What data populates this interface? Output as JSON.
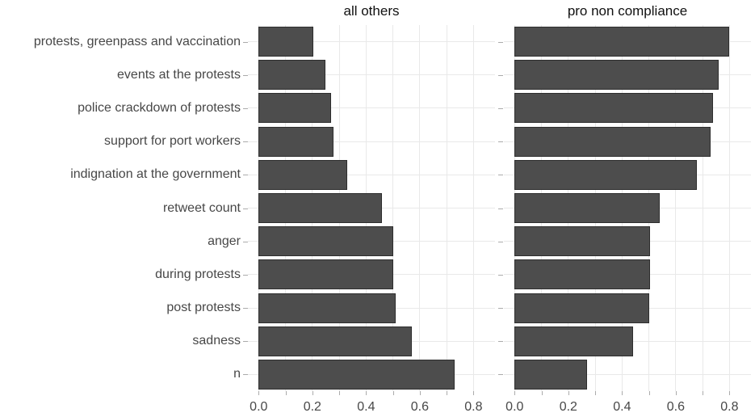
{
  "figure": {
    "background": "#ffffff"
  },
  "chart_data": {
    "type": "bar",
    "orientation": "horizontal",
    "title": "",
    "xlabel": "",
    "ylabel": "",
    "categories": [
      "protests, greenpass and vaccination",
      "events at the protests",
      "police crackdown of protests",
      "support for port workers",
      "indignation at the government",
      "retweet count",
      "anger",
      "during protests",
      "post protests",
      "sadness",
      "n"
    ],
    "facets": [
      {
        "title": "all others",
        "values": [
          0.205,
          0.25,
          0.27,
          0.28,
          0.33,
          0.46,
          0.5,
          0.5,
          0.51,
          0.57,
          0.73
        ]
      },
      {
        "title": "pro non compliance",
        "values": [
          0.8,
          0.76,
          0.74,
          0.73,
          0.68,
          0.54,
          0.505,
          0.505,
          0.5,
          0.44,
          0.27
        ]
      }
    ],
    "x_axis": {
      "range": [
        0.0,
        0.8
      ],
      "expanded_range": [
        -0.04,
        0.88
      ],
      "major_ticks": [
        0.0,
        0.2,
        0.4,
        0.6,
        0.8
      ],
      "tick_labels": [
        "0.0",
        "0.2",
        "0.4",
        "0.6",
        "0.8"
      ],
      "minor_step": 0.1,
      "grid": "on",
      "legend": "none"
    },
    "colors": {
      "bar_fill": "#4d4d4d",
      "bar_border": "#2e2e2e",
      "grid": "#e9e9e9",
      "axis_tick": "#ababab",
      "axis_text": "#474747",
      "title_text": "#111111"
    }
  }
}
